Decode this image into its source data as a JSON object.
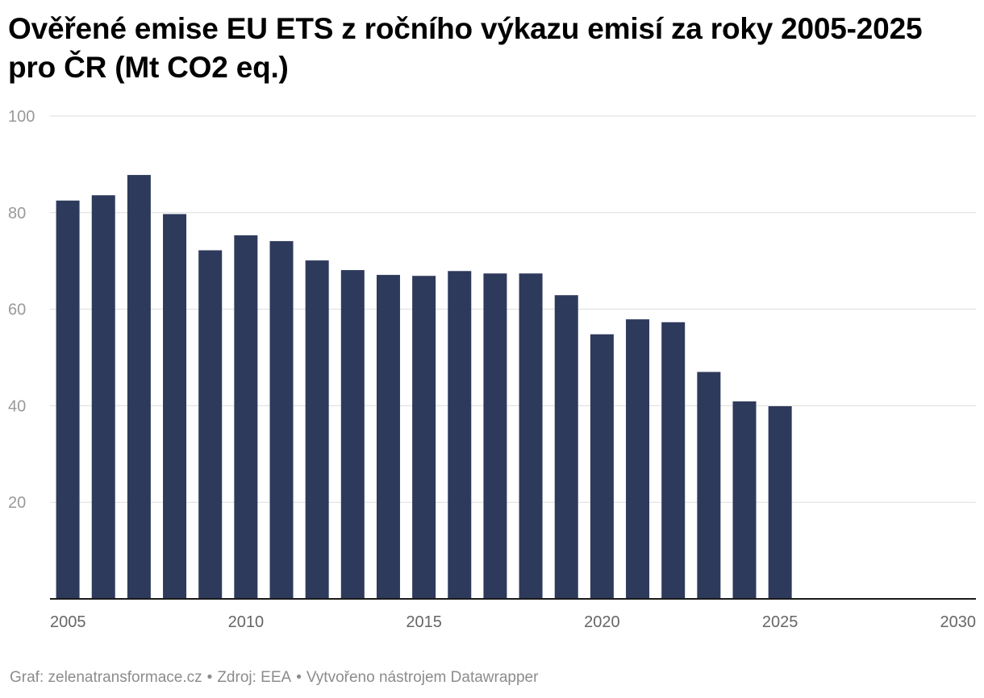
{
  "colors": {
    "bar": "#2e3a5c",
    "grid": "#dddddd",
    "axis": "#1a1a1a",
    "tick_label": "#999999",
    "x_label": "#666666"
  },
  "chart_data": {
    "type": "bar",
    "title": "Ověřené emise EU ETS z ročního výkazu emisí za roky 2005-2025 pro ČR (Mt CO2 eq.)",
    "xlabel": "",
    "ylabel": "",
    "x": [
      2005,
      2006,
      2007,
      2008,
      2009,
      2010,
      2011,
      2012,
      2013,
      2014,
      2015,
      2016,
      2017,
      2018,
      2019,
      2020,
      2021,
      2022,
      2023,
      2024,
      2025
    ],
    "values": [
      82.5,
      83.6,
      87.8,
      79.7,
      72.2,
      75.3,
      74.1,
      70.1,
      68.1,
      67.1,
      66.9,
      67.9,
      67.4,
      67.4,
      62.9,
      54.8,
      57.9,
      57.3,
      47.0,
      40.9,
      39.9
    ],
    "xlim": [
      2004.5,
      2030.5
    ],
    "ylim": [
      0,
      100
    ],
    "y_ticks": [
      20,
      40,
      60,
      80,
      100
    ],
    "x_ticks": [
      2005,
      2010,
      2015,
      2020,
      2025,
      2030
    ],
    "grid": true,
    "legend": "none"
  },
  "footer": {
    "graph": "Graf: zelenatransformace.cz",
    "source": "Zdroj: EEA",
    "tool": "Vytvořeno nástrojem Datawrapper",
    "separator": "•"
  }
}
